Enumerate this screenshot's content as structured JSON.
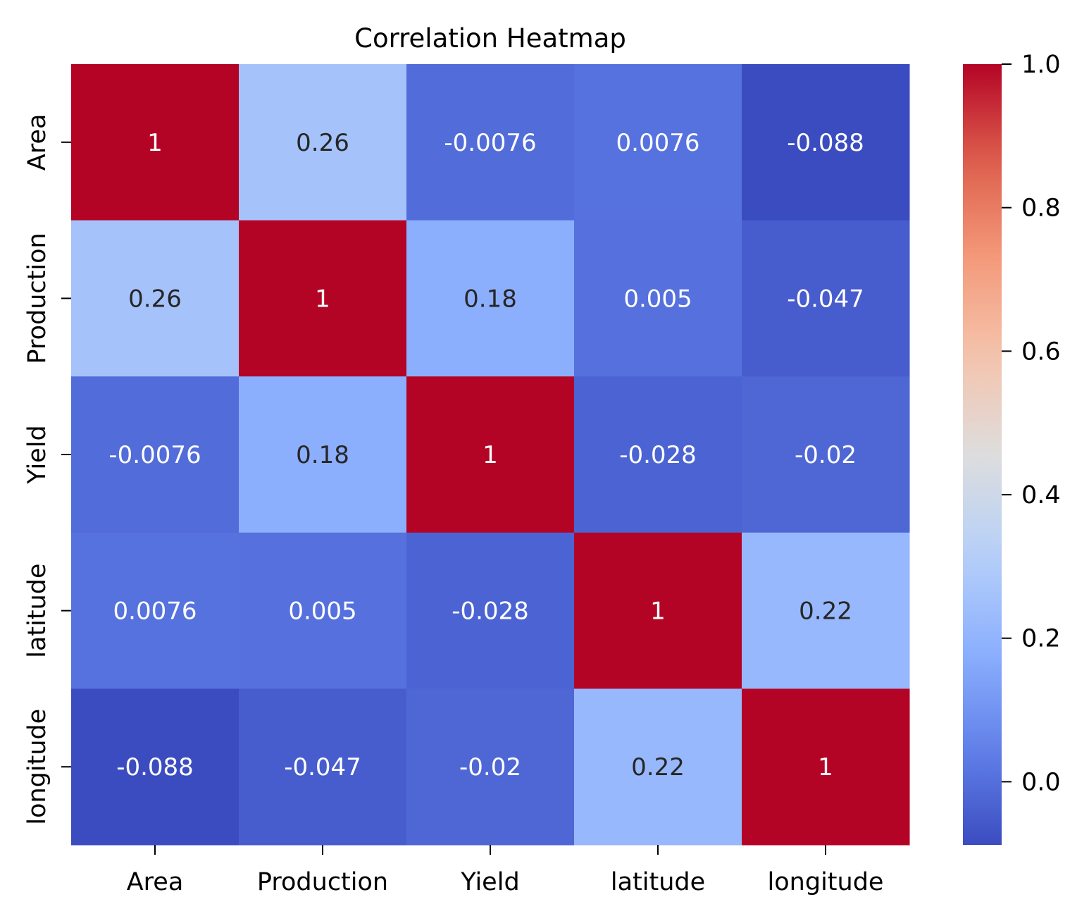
{
  "chart_data": {
    "type": "heatmap",
    "title": "Correlation Heatmap",
    "x_labels": [
      "Area",
      "Production",
      "Yield",
      "latitude",
      "longitude"
    ],
    "y_labels": [
      "Area",
      "Production",
      "Yield",
      "latitude",
      "longitude"
    ],
    "values": [
      [
        1,
        0.26,
        -0.0076,
        0.0076,
        -0.088
      ],
      [
        0.26,
        1,
        0.18,
        0.005,
        -0.047
      ],
      [
        -0.0076,
        0.18,
        1,
        -0.028,
        -0.02
      ],
      [
        0.0076,
        0.005,
        -0.028,
        1,
        0.22
      ],
      [
        -0.088,
        -0.047,
        -0.02,
        0.22,
        1
      ]
    ],
    "annotations": [
      [
        "1",
        "0.26",
        "-0.0076",
        "0.0076",
        "-0.088"
      ],
      [
        "0.26",
        "1",
        "0.18",
        "0.005",
        "-0.047"
      ],
      [
        "-0.0076",
        "0.18",
        "1",
        "-0.028",
        "-0.02"
      ],
      [
        "0.0076",
        "0.005",
        "-0.028",
        "1",
        "0.22"
      ],
      [
        "-0.088",
        "-0.047",
        "-0.02",
        "0.22",
        "1"
      ]
    ],
    "colormap": "coolwarm",
    "colorbar": {
      "min": -0.088,
      "max": 1.0,
      "ticks": [
        0.0,
        0.2,
        0.4,
        0.6,
        0.8,
        1.0
      ],
      "tick_labels": [
        "0.0",
        "0.2",
        "0.4",
        "0.6",
        "0.8",
        "1.0"
      ]
    }
  }
}
